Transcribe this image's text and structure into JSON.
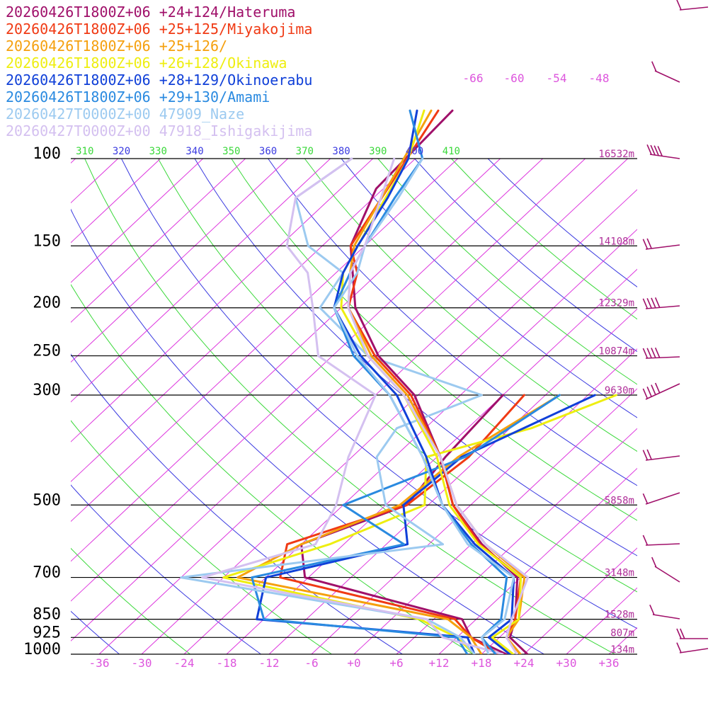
{
  "chart_data": {
    "type": "line",
    "legend": [
      {
        "text": "20260426T1800Z+06 +24+124/Hateruma",
        "color": "#a0106a"
      },
      {
        "text": "20260426T1800Z+06 +25+125/Miyakojima",
        "color": "#f03a14"
      },
      {
        "text": "20260426T1800Z+06 +25+126/",
        "color": "#f5a00e"
      },
      {
        "text": "20260426T1800Z+06 +26+128/Okinawa",
        "color": "#eeee10"
      },
      {
        "text": "20260426T1800Z+06 +28+129/Okinoerabu",
        "color": "#1040d8"
      },
      {
        "text": "20260426T1800Z+06 +29+130/Amami",
        "color": "#2a8ae0"
      },
      {
        "text": "20260427T0000Z+00 47909_Naze",
        "color": "#9ccaf0"
      },
      {
        "text": "20260427T0000Z+00 47918_Ishigakijima",
        "color": "#d4c0f0"
      }
    ],
    "pressure_levels": [
      "100",
      "150",
      "200",
      "250",
      "300",
      "500",
      "700",
      "850",
      "925",
      "1000"
    ],
    "height_labels": [
      {
        "p": 100,
        "text": "16532m"
      },
      {
        "p": 150,
        "text": "14108m"
      },
      {
        "p": 200,
        "text": "12329m"
      },
      {
        "p": 250,
        "text": "10874m"
      },
      {
        "p": 300,
        "text": "9630m"
      },
      {
        "p": 500,
        "text": "5858m"
      },
      {
        "p": 700,
        "text": "3148m"
      },
      {
        "p": 850,
        "text": "1528m"
      },
      {
        "p": 925,
        "text": "807m"
      },
      {
        "p": 1000,
        "text": "134m"
      }
    ],
    "x_ticks": [
      "-36",
      "-30",
      "-24",
      "-18",
      "-12",
      "-6",
      "+0",
      "+6",
      "+12",
      "+18",
      "+24",
      "+30",
      "+36"
    ],
    "theta_labels": [
      "310",
      "320",
      "330",
      "340",
      "350",
      "360",
      "370",
      "380",
      "390",
      "400",
      "410"
    ],
    "upper_temp_labels": [
      "-66",
      "-60",
      "-54",
      "-48"
    ],
    "xlim": [
      -36,
      36
    ],
    "ylim": [
      1000,
      100
    ],
    "y_scale": "log",
    "series": [
      {
        "name": "20260426T1800Z+06 +24+124/Hateruma",
        "color": "#a0106a",
        "temp": [
          [
            1000,
            24.5
          ],
          [
            925,
            19.5
          ],
          [
            850,
            17.5
          ],
          [
            700,
            11.5
          ],
          [
            600,
            1.5
          ],
          [
            500,
            -8.5
          ],
          [
            400,
            -17.5
          ],
          [
            300,
            -30.5
          ],
          [
            250,
            -41.5
          ],
          [
            200,
            -52
          ],
          [
            150,
            -62
          ],
          [
            115,
            -67
          ],
          [
            80,
            -68
          ]
        ],
        "dew": [
          [
            1000,
            21.5
          ],
          [
            925,
            14
          ],
          [
            850,
            10
          ],
          [
            700,
            -18.5
          ],
          [
            600,
            -24
          ],
          [
            500,
            -15
          ],
          [
            400,
            -16.8
          ],
          [
            300,
            -18
          ]
        ]
      },
      {
        "name": "20260426T1800Z+06 +25+125/Miyakojima",
        "color": "#f03a14",
        "temp": [
          [
            1000,
            23.5
          ],
          [
            925,
            19
          ],
          [
            850,
            17.5
          ],
          [
            700,
            12
          ],
          [
            600,
            1.2
          ],
          [
            500,
            -8.5
          ],
          [
            400,
            -17.5
          ],
          [
            300,
            -31
          ],
          [
            250,
            -42
          ],
          [
            200,
            -53
          ],
          [
            170,
            -57
          ],
          [
            150,
            -62
          ],
          [
            80,
            -70
          ]
        ],
        "dew": [
          [
            1000,
            20.5
          ],
          [
            925,
            14
          ],
          [
            850,
            9
          ],
          [
            700,
            -22
          ],
          [
            600,
            -26
          ],
          [
            500,
            -15
          ],
          [
            400,
            -13.5
          ],
          [
            300,
            -15
          ]
        ]
      },
      {
        "name": "20260426T1800Z+06 +25+126/",
        "color": "#f5a00e",
        "temp": [
          [
            1000,
            23.5
          ],
          [
            925,
            19
          ],
          [
            850,
            18
          ],
          [
            700,
            12.5
          ],
          [
            600,
            2
          ],
          [
            500,
            -8
          ],
          [
            400,
            -17.5
          ],
          [
            300,
            -31.5
          ],
          [
            250,
            -42.5
          ],
          [
            200,
            -53
          ],
          [
            170,
            -58
          ],
          [
            150,
            -61.5
          ],
          [
            80,
            -71
          ]
        ],
        "dew": [
          [
            1000,
            18
          ],
          [
            925,
            14
          ],
          [
            850,
            8
          ],
          [
            700,
            -28
          ],
          [
            600,
            -24
          ],
          [
            500,
            -16
          ],
          [
            400,
            -15
          ],
          [
            300,
            -10
          ]
        ]
      },
      {
        "name": "20260426T1800Z+06 +26+128/Okinawa",
        "color": "#eeee10",
        "temp": [
          [
            1000,
            22.5
          ],
          [
            925,
            17
          ],
          [
            850,
            18
          ],
          [
            700,
            12
          ],
          [
            600,
            1
          ],
          [
            500,
            -9
          ],
          [
            400,
            -18
          ],
          [
            300,
            -32
          ],
          [
            250,
            -43
          ],
          [
            200,
            -54
          ],
          [
            170,
            -59
          ],
          [
            150,
            -61
          ],
          [
            100,
            -67
          ],
          [
            80,
            -72
          ]
        ],
        "dew": [
          [
            1000,
            17
          ],
          [
            925,
            12
          ],
          [
            850,
            4
          ],
          [
            700,
            -30
          ],
          [
            600,
            -20
          ],
          [
            500,
            -12.5
          ],
          [
            400,
            -19.5
          ],
          [
            350,
            -9
          ],
          [
            300,
            -2
          ]
        ]
      },
      {
        "name": "20260426T1800Z+06 +28+129/Okinoerabu",
        "color": "#1040d8",
        "temp": [
          [
            1000,
            22
          ],
          [
            925,
            16.5
          ],
          [
            850,
            17
          ],
          [
            700,
            11
          ],
          [
            600,
            0.5
          ],
          [
            500,
            -10
          ],
          [
            400,
            -19.5
          ],
          [
            300,
            -33
          ],
          [
            250,
            -44
          ],
          [
            200,
            -55
          ],
          [
            170,
            -59
          ],
          [
            150,
            -61
          ],
          [
            120,
            -64
          ],
          [
            100,
            -67
          ],
          [
            80,
            -73
          ]
        ],
        "dew": [
          [
            1000,
            17
          ],
          [
            925,
            13.5
          ],
          [
            850,
            -19
          ],
          [
            700,
            -24
          ],
          [
            600,
            -9
          ],
          [
            500,
            -15.5
          ],
          [
            400,
            -14.5
          ],
          [
            300,
            -5
          ]
        ]
      },
      {
        "name": "20260426T1800Z+06 +29+130/Amami",
        "color": "#2a8ae0",
        "temp": [
          [
            1000,
            20
          ],
          [
            925,
            15.5
          ],
          [
            850,
            15.5
          ],
          [
            700,
            10
          ],
          [
            600,
            0
          ],
          [
            500,
            -10
          ],
          [
            400,
            -20
          ],
          [
            300,
            -34
          ],
          [
            250,
            -45
          ],
          [
            200,
            -55
          ],
          [
            170,
            -58
          ],
          [
            150,
            -60
          ],
          [
            120,
            -63
          ],
          [
            100,
            -65
          ],
          [
            80,
            -74
          ]
        ],
        "dew": [
          [
            1000,
            16
          ],
          [
            925,
            12
          ],
          [
            850,
            -18
          ],
          [
            700,
            -26
          ],
          [
            600,
            -9.5
          ],
          [
            500,
            -24
          ],
          [
            400,
            -14
          ],
          [
            300,
            -10
          ]
        ]
      },
      {
        "name": "20260427T0000Z+00 47909_Naze",
        "color": "#9ccaf0",
        "temp": [
          [
            1000,
            19
          ],
          [
            925,
            15.5
          ],
          [
            850,
            16
          ],
          [
            700,
            11
          ],
          [
            600,
            -0.5
          ],
          [
            500,
            -10
          ],
          [
            400,
            -20
          ],
          [
            300,
            -34
          ],
          [
            250,
            -44.5
          ],
          [
            200,
            -55
          ],
          [
            170,
            -57
          ],
          [
            150,
            -60
          ],
          [
            120,
            -62.5
          ],
          [
            100,
            -65
          ]
        ],
        "dew": [
          [
            1000,
            17
          ],
          [
            925,
            12.5
          ],
          [
            850,
            5
          ],
          [
            700,
            -36
          ],
          [
            600,
            -4
          ],
          [
            500,
            -18
          ],
          [
            400,
            -26.5
          ],
          [
            350,
            -28
          ],
          [
            300,
            -21
          ],
          [
            250,
            -43
          ],
          [
            200,
            -57
          ],
          [
            170,
            -59
          ],
          [
            150,
            -68
          ],
          [
            120,
            -77
          ],
          [
            100,
            -75
          ]
        ]
      },
      {
        "name": "20260427T0000Z+00 47918_Ishigakijima",
        "color": "#d4c0f0",
        "temp": [
          [
            1000,
            23
          ],
          [
            925,
            19
          ],
          [
            850,
            17
          ],
          [
            700,
            13
          ],
          [
            600,
            2
          ],
          [
            500,
            -8
          ],
          [
            400,
            -17.5
          ],
          [
            300,
            -32
          ],
          [
            250,
            -43
          ],
          [
            200,
            -53
          ],
          [
            170,
            -58
          ],
          [
            150,
            -60
          ],
          [
            100,
            -69
          ]
        ],
        "dew": [
          [
            1000,
            21
          ],
          [
            925,
            10
          ],
          [
            850,
            5
          ],
          [
            700,
            -33
          ],
          [
            600,
            -22
          ],
          [
            500,
            -25
          ],
          [
            400,
            -30.5
          ],
          [
            300,
            -36
          ],
          [
            250,
            -50
          ],
          [
            200,
            -58
          ],
          [
            170,
            -64
          ],
          [
            150,
            -71
          ],
          [
            120,
            -77
          ],
          [
            100,
            -75
          ]
        ]
      }
    ]
  }
}
